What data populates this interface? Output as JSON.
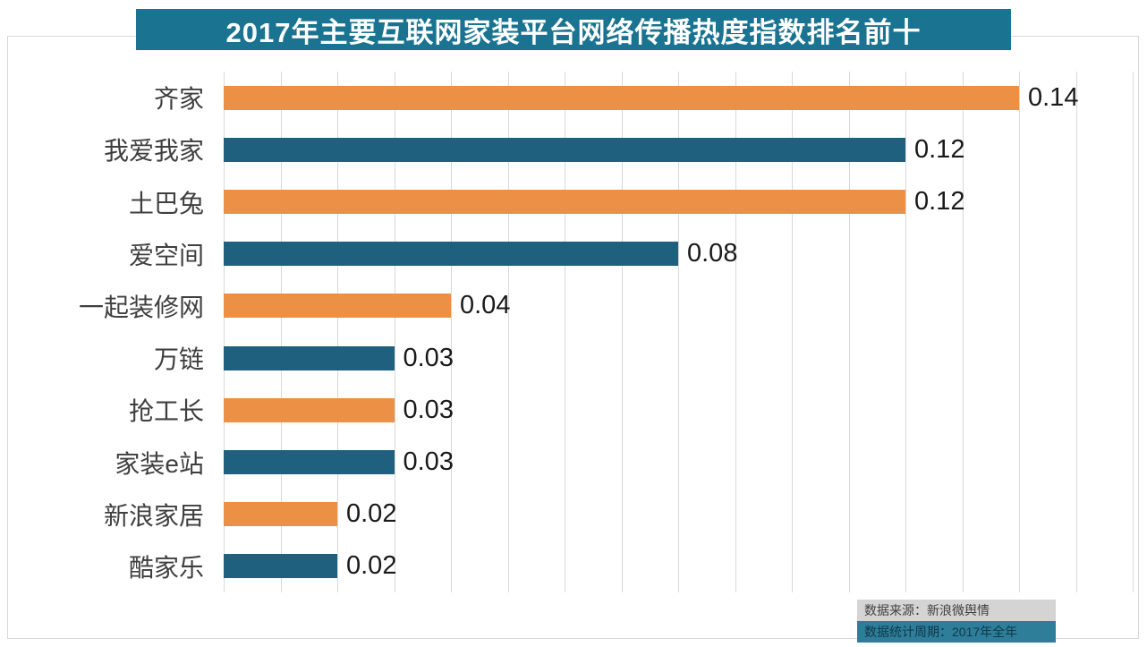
{
  "chart_data": {
    "type": "bar",
    "orientation": "horizontal",
    "title": "2017年主要互联网家装平台网络传播热度指数排名前十",
    "categories": [
      "齐家",
      "我爱我家",
      "土巴兔",
      "爱空间",
      "一起装修网",
      "万链",
      "抢工长",
      "家装e站",
      "新浪家居",
      "酷家乐"
    ],
    "values": [
      0.14,
      0.12,
      0.12,
      0.08,
      0.04,
      0.03,
      0.03,
      0.03,
      0.02,
      0.02
    ],
    "value_labels": [
      "0.14",
      "0.12",
      "0.12",
      "0.08",
      "0.04",
      "0.03",
      "0.03",
      "0.03",
      "0.02",
      "0.02"
    ],
    "xlim": [
      0,
      0.16
    ],
    "grid_interval": 0.01,
    "gridline_count": 17,
    "grid": true,
    "legend": "none",
    "colors": {
      "bar_odd_rows": "#ec9045",
      "bar_even_rows": "#20607f",
      "title_bg": "#1a7391",
      "title_text": "#ffffff",
      "gridline": "#d9d9d9",
      "category_text": "#3f3f3f",
      "value_text": "#1a1a1a"
    }
  },
  "source": {
    "line1": "数据来源：新浪微舆情",
    "line2": "数据统计周期：2017年全年"
  }
}
